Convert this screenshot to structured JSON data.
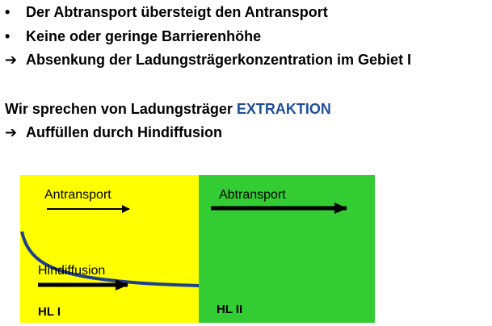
{
  "bullets": [
    {
      "marker": "•",
      "text": "Der Abtransport übersteigt den Antransport"
    },
    {
      "marker": "•",
      "text": "Keine oder geringe Barrierenhöhe"
    }
  ],
  "conclusion1": {
    "marker": "➔",
    "text": "Absenkung der Ladungsträgerkonzentration im Gebiet I"
  },
  "statement": {
    "prefix": "Wir sprechen von Ladungsträger ",
    "highlight": "EXTRAKTION"
  },
  "conclusion2": {
    "marker": "➔",
    "text": "Auffüllen durch Hindiffusion"
  },
  "diagram": {
    "region1": {
      "label": "HL I",
      "color": "#ffff00"
    },
    "region2": {
      "label": "HL II",
      "color": "#33cc33"
    },
    "antransport": "Antransport",
    "abtransport": "Abtransport",
    "hindiffusion": "Hindiffusion",
    "curve_color": "#1f3f8f"
  }
}
